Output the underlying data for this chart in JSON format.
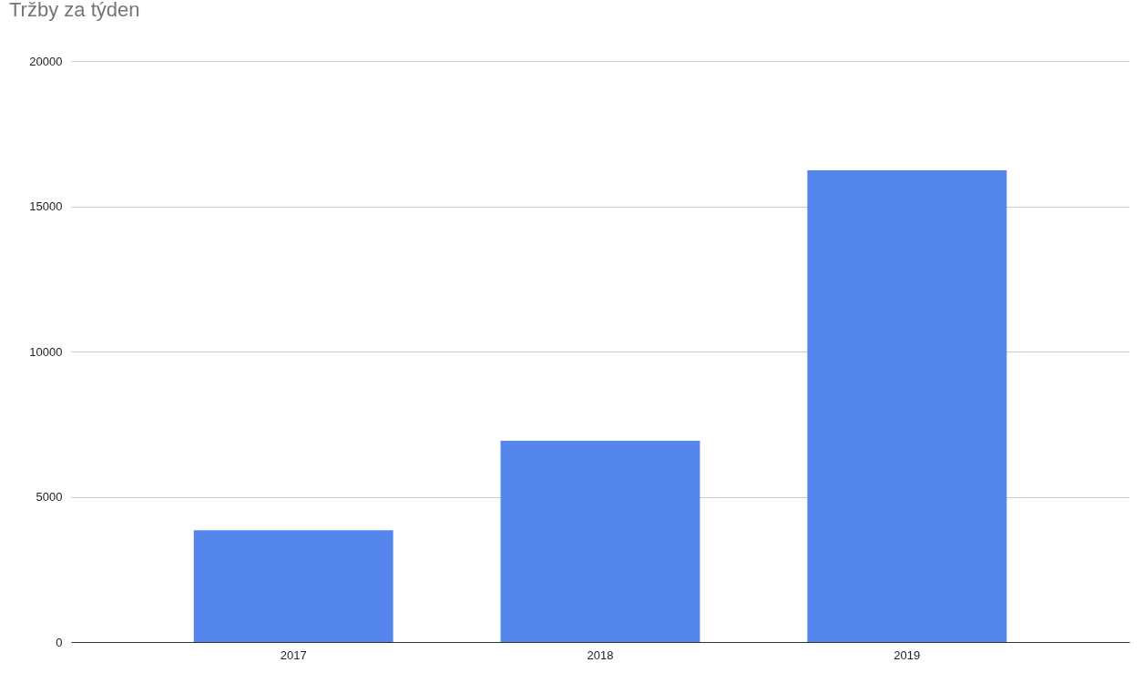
{
  "chart_data": {
    "type": "bar",
    "title": "Tržby za týden",
    "categories": [
      "2017",
      "2018",
      "2019"
    ],
    "values": [
      3850,
      6930,
      16240
    ],
    "color": "#5586eb",
    "ylim": [
      0,
      20000
    ],
    "yticks": [
      0,
      5000,
      10000,
      15000,
      20000
    ],
    "grid": "y"
  }
}
